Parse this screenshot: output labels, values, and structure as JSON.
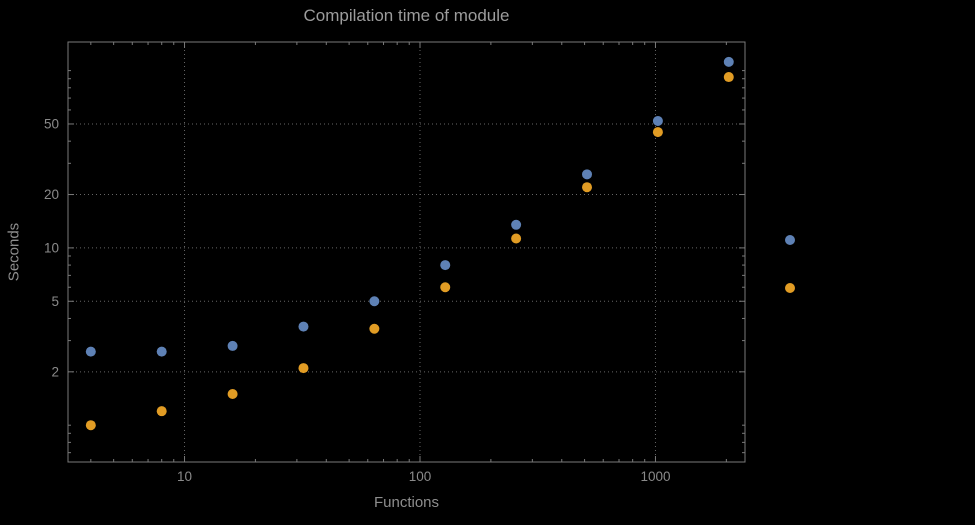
{
  "chart_data": {
    "type": "scatter",
    "title": "Compilation time of module",
    "xlabel": "Functions",
    "ylabel": "Seconds",
    "x_scale": "log",
    "y_scale": "log",
    "xlim": [
      3.2,
      2400
    ],
    "ylim": [
      0.62,
      145
    ],
    "x_ticks": [
      10,
      100,
      1000
    ],
    "x_tick_labels": [
      "10",
      "100",
      "1000"
    ],
    "y_ticks": [
      2,
      5,
      10,
      20,
      50
    ],
    "y_tick_labels": [
      "2",
      "5",
      "10",
      "20",
      "50"
    ],
    "grid": true,
    "grid_style": "dotted",
    "x": [
      4,
      8,
      16,
      32,
      64,
      128,
      256,
      512,
      1024,
      2048
    ],
    "series": [
      {
        "color": "#5E81B5",
        "values": [
          2.6,
          2.6,
          2.8,
          3.6,
          5.0,
          8.0,
          13.5,
          26,
          52,
          112
        ]
      },
      {
        "color": "#E19C24",
        "values": [
          1.0,
          1.2,
          1.5,
          2.1,
          3.5,
          6.0,
          11.3,
          22,
          45,
          92
        ]
      }
    ],
    "legend": {
      "position": "right-center",
      "markers": [
        {
          "color": "#5E81B5"
        },
        {
          "color": "#E19C24"
        }
      ]
    }
  },
  "colors": {
    "background": "#000000",
    "frame": "#7a7a7a",
    "grid": "#666666",
    "title_text": "#9c9c9c",
    "axis_text": "#8a8a8a",
    "series1": "#5E81B5",
    "series2": "#E19C24"
  }
}
